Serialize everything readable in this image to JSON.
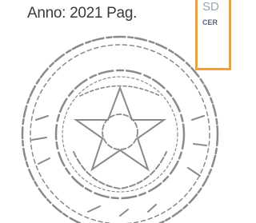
{
  "header": {
    "text": "Anno: 2021 Pag."
  },
  "stamp_box": {
    "line1": "SD",
    "line2": "CER"
  }
}
